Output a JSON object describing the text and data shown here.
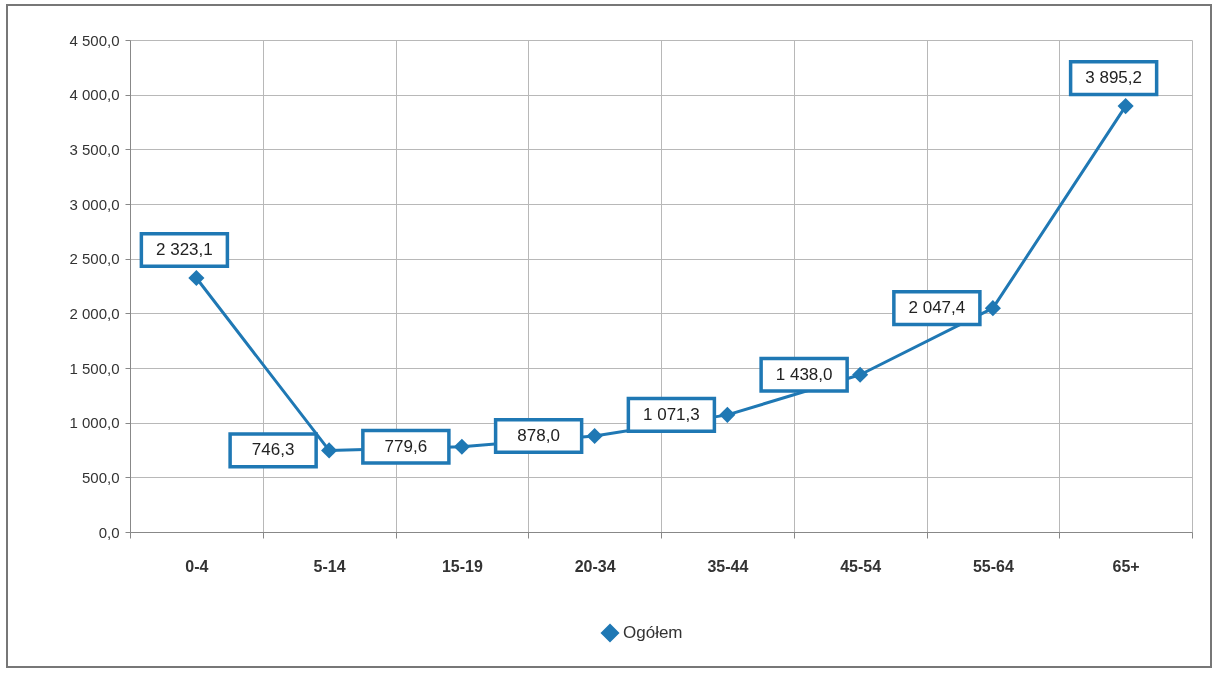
{
  "chart_data": {
    "type": "line",
    "categories": [
      "0-4",
      "5-14",
      "15-19",
      "20-34",
      "35-44",
      "45-54",
      "55-64",
      "65+"
    ],
    "series": [
      {
        "name": "Ogółem",
        "color": "#1f78b4",
        "values": [
          2323.1,
          746.3,
          779.6,
          878.0,
          1071.3,
          1438.0,
          2047.4,
          3895.2
        ],
        "value_labels": [
          "2 323,1",
          "746,3",
          "779,6",
          "878,0",
          "1 071,3",
          "1 438,0",
          "2 047,4",
          "3 895,2"
        ]
      }
    ],
    "ylim": [
      0,
      4500
    ],
    "yticks": [
      {
        "value": 0,
        "label": "0,0"
      },
      {
        "value": 500,
        "label": "500,0"
      },
      {
        "value": 1000,
        "label": "1 000,0"
      },
      {
        "value": 1500,
        "label": "1 500,0"
      },
      {
        "value": 2000,
        "label": "2 000,0"
      },
      {
        "value": 2500,
        "label": "2 500,0"
      },
      {
        "value": 3000,
        "label": "3 000,0"
      },
      {
        "value": 3500,
        "label": "3 500,0"
      },
      {
        "value": 4000,
        "label": "4 000,0"
      },
      {
        "value": 4500,
        "label": "4 500,0"
      }
    ],
    "grid": true,
    "legend": "bottom",
    "marker": "diamond",
    "line_style": "solid"
  }
}
